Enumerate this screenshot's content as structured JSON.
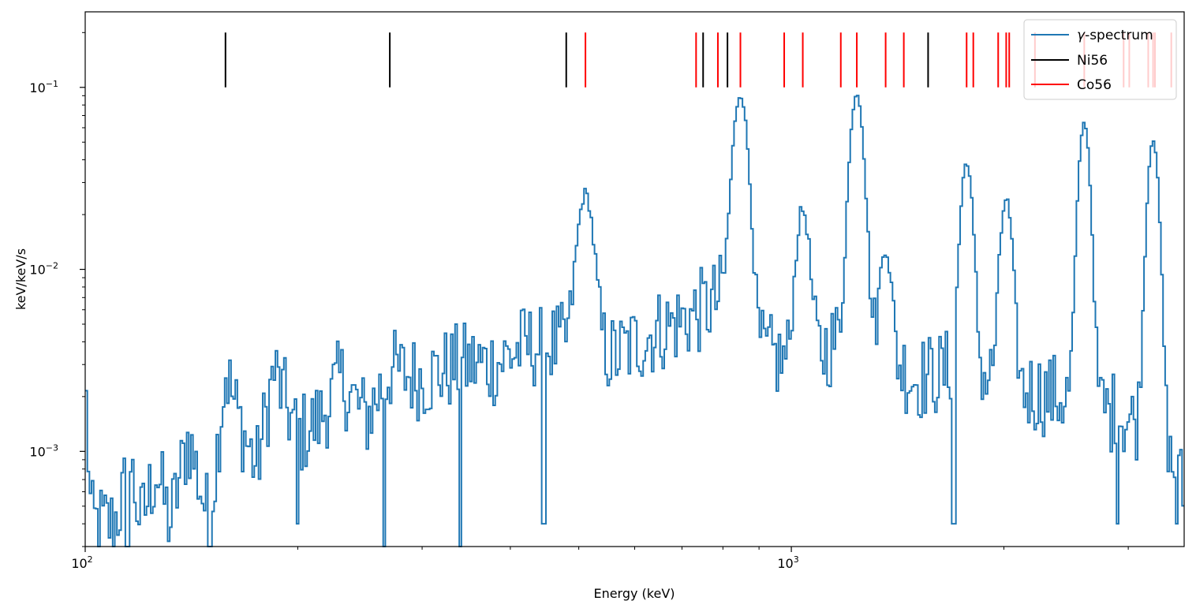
{
  "chart_data": {
    "type": "line",
    "title": "",
    "xlabel": "Energy (keV)",
    "ylabel": "keV/keV/s",
    "xscale": "log",
    "yscale": "log",
    "xlim": [
      100,
      3600
    ],
    "ylim": [
      0.0003,
      0.26
    ],
    "x_major_ticks": [
      {
        "value": 100,
        "base": "10",
        "exp": "2"
      },
      {
        "value": 1000,
        "base": "10",
        "exp": "3"
      }
    ],
    "y_major_ticks": [
      {
        "value": 0.001,
        "base": "10",
        "exp": "−3"
      },
      {
        "value": 0.01,
        "base": "10",
        "exp": "−2"
      },
      {
        "value": 0.1,
        "base": "10",
        "exp": "−1"
      }
    ],
    "legend": {
      "position": "top-right",
      "entries": [
        {
          "label_prefix": "γ",
          "label_suffix": "-spectrum",
          "color": "#1f77b4"
        },
        {
          "label": "Ni56",
          "color": "#000000"
        },
        {
          "label": "Co56",
          "color": "#ff0000"
        }
      ]
    },
    "line_markers": {
      "ymin": 0.1,
      "ymax": 0.2,
      "Ni56": [
        158,
        270,
        480,
        750,
        812,
        1562
      ],
      "Co56": [
        511,
        733,
        787,
        847,
        977,
        1038,
        1175,
        1238,
        1360,
        1443,
        1771,
        1810,
        1963,
        2015,
        2035,
        2213,
        2599,
        2955,
        3010,
        3202,
        3253,
        3273,
        3452
      ]
    },
    "series": [
      {
        "name": "γ-spectrum",
        "color": "#1f77b4",
        "background": [
          [
            100,
            0.0025
          ],
          [
            102,
            0.0004
          ],
          [
            110,
            0.0004
          ],
          [
            116,
            0.0008
          ],
          [
            120,
            0.0004
          ],
          [
            126,
            0.0008
          ],
          [
            132,
            0.0004
          ],
          [
            140,
            0.0012
          ],
          [
            150,
            0.0004
          ],
          [
            158,
            0.0028
          ],
          [
            165,
            0.0015
          ],
          [
            175,
            0.0008
          ],
          [
            185,
            0.0028
          ],
          [
            200,
            0.0012
          ],
          [
            215,
            0.0015
          ],
          [
            230,
            0.0025
          ],
          [
            250,
            0.0015
          ],
          [
            270,
            0.0028
          ],
          [
            300,
            0.0025
          ],
          [
            340,
            0.003
          ],
          [
            380,
            0.003
          ],
          [
            420,
            0.0038
          ],
          [
            460,
            0.0038
          ],
          [
            500,
            0.0038
          ],
          [
            560,
            0.0033
          ],
          [
            640,
            0.0045
          ],
          [
            720,
            0.0055
          ],
          [
            800,
            0.007
          ],
          [
            900,
            0.0035
          ],
          [
            1000,
            0.003
          ],
          [
            1100,
            0.0035
          ],
          [
            1200,
            0.0045
          ],
          [
            1350,
            0.0035
          ],
          [
            1500,
            0.0025
          ],
          [
            1700,
            0.0028
          ],
          [
            1900,
            0.0025
          ],
          [
            2100,
            0.0022
          ],
          [
            2400,
            0.002
          ],
          [
            2700,
            0.0018
          ],
          [
            3000,
            0.0015
          ],
          [
            3300,
            0.0012
          ],
          [
            3600,
            0.0006
          ]
        ],
        "peaks": [
          {
            "center": 511,
            "amplitude": 0.022,
            "width": 0.022
          },
          {
            "center": 847,
            "amplitude": 0.085,
            "width": 0.02
          },
          {
            "center": 1038,
            "amplitude": 0.018,
            "width": 0.018
          },
          {
            "center": 1238,
            "amplitude": 0.088,
            "width": 0.018
          },
          {
            "center": 1360,
            "amplitude": 0.01,
            "width": 0.015
          },
          {
            "center": 1771,
            "amplitude": 0.036,
            "width": 0.016
          },
          {
            "center": 2015,
            "amplitude": 0.022,
            "width": 0.016
          },
          {
            "center": 2599,
            "amplitude": 0.062,
            "width": 0.015
          },
          {
            "center": 3253,
            "amplitude": 0.05,
            "width": 0.015
          }
        ],
        "noise_dips": [
          [
            115,
            0.0003
          ],
          [
            150,
            0.0003
          ],
          [
            200,
            0.0004
          ],
          [
            265,
            0.0003
          ],
          [
            340,
            0.0003
          ],
          [
            445,
            0.0004
          ],
          [
            1700,
            0.0004
          ],
          [
            2895,
            0.0004
          ],
          [
            3515,
            0.0004
          ]
        ]
      }
    ]
  }
}
